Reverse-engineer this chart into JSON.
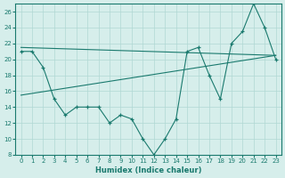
{
  "x": [
    0,
    1,
    2,
    3,
    4,
    5,
    6,
    7,
    8,
    9,
    10,
    11,
    12,
    13,
    14,
    15,
    16,
    17,
    18,
    19,
    20,
    21,
    22,
    23
  ],
  "y_main": [
    21,
    21,
    19,
    15,
    13,
    14,
    14,
    14,
    12,
    13,
    12.5,
    10,
    8,
    10,
    12.5,
    21,
    21.5,
    18,
    15,
    22,
    23.5,
    27,
    24,
    20
  ],
  "line1_x": [
    0,
    23
  ],
  "line1_y": [
    21.5,
    20.5
  ],
  "line2_x": [
    0,
    23
  ],
  "line2_y": [
    15.5,
    20.5
  ],
  "color": "#1a7a6e",
  "bg_color": "#d6eeeb",
  "grid_color": "#b0d8d4",
  "xlabel": "Humidex (Indice chaleur)",
  "ylim": [
    8,
    27
  ],
  "xlim": [
    -0.5,
    23.5
  ],
  "yticks": [
    8,
    10,
    12,
    14,
    16,
    18,
    20,
    22,
    24,
    26
  ],
  "xticks": [
    0,
    1,
    2,
    3,
    4,
    5,
    6,
    7,
    8,
    9,
    10,
    11,
    12,
    13,
    14,
    15,
    16,
    17,
    18,
    19,
    20,
    21,
    22,
    23
  ]
}
